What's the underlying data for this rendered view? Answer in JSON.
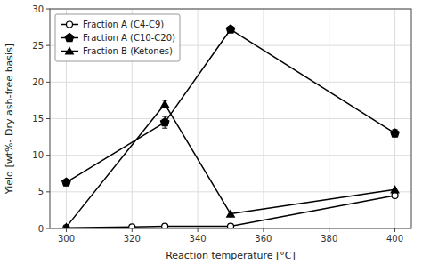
{
  "chart_data": {
    "type": "line",
    "xlabel": "Reaction temperature [°C]",
    "ylabel": "Yield [wt%- Dry ash-free basis]",
    "series": [
      {
        "name": "Fraction A (C4-C9)",
        "color": "black",
        "marker": "open-circle",
        "x": [
          300,
          320,
          330,
          350,
          400
        ],
        "values": [
          0.1,
          0.2,
          0.3,
          0.3,
          4.5
        ]
      },
      {
        "name": "Fraction A (C10-C20)",
        "color": "black",
        "marker": "pentagon",
        "x": [
          300,
          330,
          350,
          400
        ],
        "values": [
          6.3,
          14.5,
          27.2,
          13.0
        ],
        "errors": [
          null,
          0.8,
          null,
          0.5
        ]
      },
      {
        "name": "Fraction B (Ketones)",
        "color": "black",
        "marker": "triangle",
        "x": [
          300,
          330,
          350,
          400
        ],
        "values": [
          0.2,
          17.0,
          2.0,
          5.3
        ],
        "errors": [
          null,
          0.5,
          null,
          null
        ]
      }
    ],
    "xlim": [
      295,
      405
    ],
    "ylim": [
      0,
      30
    ],
    "xticks": [
      300,
      320,
      340,
      360,
      380,
      400
    ],
    "yticks": [
      0,
      5,
      10,
      15,
      20,
      25,
      30
    ],
    "grid": true,
    "legend": "upper left"
  }
}
